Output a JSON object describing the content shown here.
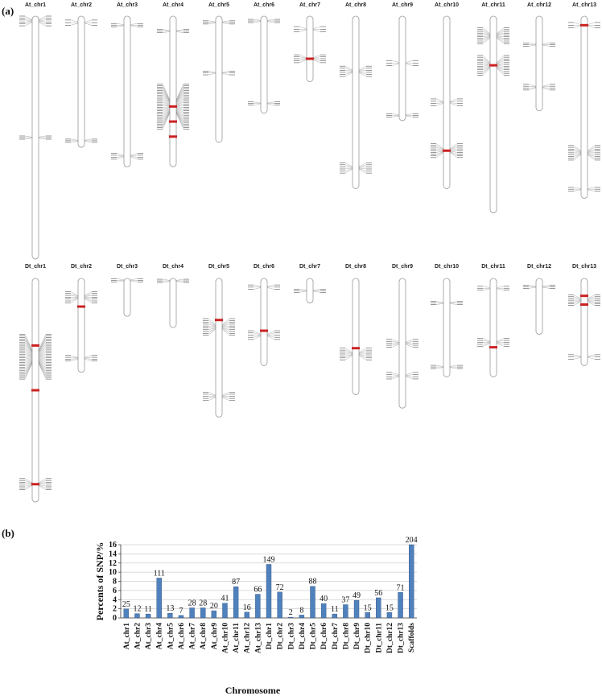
{
  "panels": {
    "a": "(a)",
    "b": "(b)"
  },
  "linkage_map": {
    "colors": {
      "chromosome": "#9a9a9a",
      "marker": "#555555",
      "connector": "#777777",
      "highlight": "#cc2222"
    },
    "rows": [
      {
        "group": "At",
        "chromosomes": [
          {
            "name": "At_chr1",
            "length": 1.0,
            "clusters": [
              [
                0.02,
                0.04
              ],
              [
                0.5,
                0.01
              ]
            ],
            "highlights": []
          },
          {
            "name": "At_chr2",
            "length": 0.54,
            "clusters": [
              [
                0.05,
                0.04
              ],
              [
                0.95,
                0.02
              ]
            ],
            "highlights": []
          },
          {
            "name": "At_chr3",
            "length": 0.62,
            "clusters": [
              [
                0.06,
                0.02
              ],
              [
                0.93,
                0.04
              ]
            ],
            "highlights": []
          },
          {
            "name": "At_chr4",
            "length": 0.62,
            "clusters": [
              [
                0.1,
                0.02
              ],
              [
                0.6,
                0.3
              ]
            ],
            "highlights": [
              0.6,
              0.7,
              0.8
            ]
          },
          {
            "name": "At_chr5",
            "length": 0.52,
            "clusters": [
              [
                0.05,
                0.02
              ],
              [
                0.45,
                0.03
              ]
            ],
            "highlights": []
          },
          {
            "name": "At_chr6",
            "length": 0.4,
            "clusters": [
              [
                0.05,
                0.02
              ],
              [
                0.9,
                0.03
              ]
            ],
            "highlights": []
          },
          {
            "name": "At_chr7",
            "length": 0.27,
            "clusters": [
              [
                0.2,
                0.08
              ],
              [
                0.65,
                0.12
              ]
            ],
            "highlights": [
              0.65
            ]
          },
          {
            "name": "At_chr8",
            "length": 0.71,
            "clusters": [
              [
                0.32,
                0.06
              ],
              [
                0.88,
                0.06
              ]
            ],
            "highlights": []
          },
          {
            "name": "At_chr9",
            "length": 0.43,
            "clusters": [
              [
                0.45,
                0.05
              ],
              [
                0.95,
                0.02
              ]
            ],
            "highlights": []
          },
          {
            "name": "At_chr10",
            "length": 0.71,
            "clusters": [
              [
                0.5,
                0.04
              ],
              [
                0.78,
                0.08
              ]
            ],
            "highlights": [
              0.78
            ]
          },
          {
            "name": "At_chr11",
            "length": 0.81,
            "clusters": [
              [
                0.1,
                0.08
              ],
              [
                0.25,
                0.1
              ]
            ],
            "highlights": [
              0.25
            ]
          },
          {
            "name": "At_chr12",
            "length": 0.39,
            "clusters": [
              [
                0.3,
                0.03
              ],
              [
                0.75,
                0.06
              ]
            ],
            "highlights": []
          },
          {
            "name": "At_chr13",
            "length": 0.75,
            "clusters": [
              [
                0.05,
                0.03
              ],
              [
                0.75,
                0.08
              ],
              [
                0.95,
                0.02
              ]
            ],
            "highlights": [
              0.05
            ]
          }
        ]
      },
      {
        "group": "Dt",
        "chromosomes": [
          {
            "name": "Dt_chr1",
            "length": 1.0,
            "clusters": [
              [
                0.35,
                0.2
              ],
              [
                0.92,
                0.05
              ]
            ],
            "highlights": [
              0.3,
              0.5,
              0.92
            ]
          },
          {
            "name": "Dt_chr2",
            "length": 0.42,
            "clusters": [
              [
                0.2,
                0.12
              ],
              [
                0.85,
                0.06
              ]
            ],
            "highlights": [
              0.3
            ]
          },
          {
            "name": "Dt_chr3",
            "length": 0.17,
            "clusters": [
              [
                0.05,
                0.02
              ]
            ],
            "highlights": []
          },
          {
            "name": "Dt_chr4",
            "length": 0.22,
            "clusters": [
              [
                0.05,
                0.03
              ]
            ],
            "highlights": []
          },
          {
            "name": "Dt_chr5",
            "length": 0.62,
            "clusters": [
              [
                0.35,
                0.12
              ],
              [
                0.85,
                0.06
              ]
            ],
            "highlights": [
              0.3
            ]
          },
          {
            "name": "Dt_chr6",
            "length": 0.39,
            "clusters": [
              [
                0.1,
                0.05
              ],
              [
                0.65,
                0.1
              ]
            ],
            "highlights": [
              0.6
            ]
          },
          {
            "name": "Dt_chr7",
            "length": 0.11,
            "clusters": [
              [
                0.5,
                0.03
              ]
            ],
            "highlights": []
          },
          {
            "name": "Dt_chr8",
            "length": 0.52,
            "clusters": [
              [
                0.65,
                0.1
              ]
            ],
            "highlights": [
              0.6
            ]
          },
          {
            "name": "Dt_chr9",
            "length": 0.58,
            "clusters": [
              [
                0.5,
                0.06
              ],
              [
                0.75,
                0.05
              ]
            ],
            "highlights": []
          },
          {
            "name": "Dt_chr10",
            "length": 0.44,
            "clusters": [
              [
                0.25,
                0.03
              ],
              [
                0.9,
                0.03
              ]
            ],
            "highlights": []
          },
          {
            "name": "Dt_chr11",
            "length": 0.44,
            "clusters": [
              [
                0.1,
                0.04
              ],
              [
                0.65,
                0.08
              ]
            ],
            "highlights": [
              0.7
            ]
          },
          {
            "name": "Dt_chr12",
            "length": 0.25,
            "clusters": [
              [
                0.15,
                0.05
              ]
            ],
            "highlights": []
          },
          {
            "name": "Dt_chr13",
            "length": 0.39,
            "clusters": [
              [
                0.25,
                0.12
              ],
              [
                0.9,
                0.05
              ]
            ],
            "highlights": [
              0.2,
              0.3
            ]
          }
        ]
      }
    ]
  },
  "chart_data": {
    "type": "bar",
    "ylabel": "Percents of SNP/%",
    "xlabel": "Chromosome",
    "ylim": [
      0,
      16
    ],
    "yticks": [
      0,
      2,
      4,
      6,
      8,
      10,
      12,
      14,
      16
    ],
    "grid": true,
    "bar_color": "#4f81bd",
    "categories": [
      "At_chr1",
      "At_chr2",
      "At_chr3",
      "At_chr4",
      "At_chr5",
      "At_chr6",
      "At_chr7",
      "At_chr8",
      "At_chr9",
      "At_chr10",
      "At_chr11",
      "At_chr12",
      "At_chr13",
      "Dt_chr1",
      "Dt_chr2",
      "Dt_chr3",
      "Dt_chr4",
      "Dt_chr5",
      "Dt_chr6",
      "Dt_chr7",
      "Dt_chr8",
      "Dt_chr9",
      "Dt_chr10",
      "Dt_chr11",
      "Dt_chr12",
      "Dt_chr13",
      "Scaffolds"
    ],
    "values": [
      1.96,
      0.94,
      0.86,
      8.71,
      1.02,
      0.55,
      2.2,
      2.2,
      1.57,
      3.22,
      6.83,
      1.26,
      5.18,
      11.7,
      5.65,
      0.16,
      0.63,
      6.91,
      3.14,
      0.86,
      2.9,
      3.85,
      1.18,
      4.4,
      1.18,
      5.57,
      16.0
    ],
    "data_labels": [
      "25",
      "12",
      "11",
      "111",
      "13",
      "7",
      "28",
      "28",
      "20",
      "41",
      "87",
      "16",
      "66",
      "149",
      "72",
      "2",
      "8",
      "88",
      "40",
      "11",
      "37",
      "49",
      "15",
      "56",
      "15",
      "71",
      "204"
    ]
  }
}
